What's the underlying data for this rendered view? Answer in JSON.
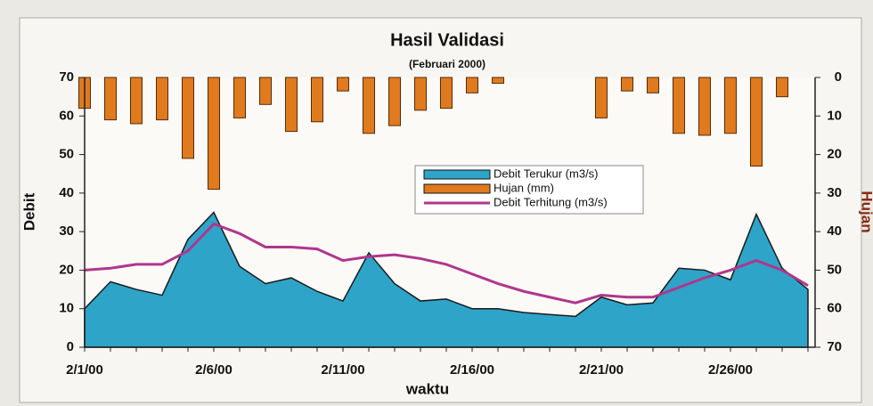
{
  "chart_data": {
    "type": "combo",
    "title": "Hasil Validasi",
    "subtitle": "(Februari 2000)",
    "x_label": "waktu",
    "y_label": "Debit",
    "y2_label": "Hujan",
    "categories": [
      "2/1/00",
      null,
      null,
      null,
      null,
      "2/6/00",
      null,
      null,
      null,
      null,
      "2/11/00",
      null,
      null,
      null,
      null,
      "2/16/00",
      null,
      null,
      null,
      null,
      "2/21/00",
      null,
      null,
      null,
      null,
      "2/26/00",
      null,
      null,
      null
    ],
    "ylim": [
      0,
      70
    ],
    "yticks": [
      0,
      10,
      20,
      30,
      40,
      50,
      60,
      70
    ],
    "y2lim": [
      70,
      0
    ],
    "y2ticks": [
      0,
      10,
      20,
      30,
      40,
      50,
      60,
      70
    ],
    "legend": "center",
    "series": [
      {
        "name": "Debit Terukur (m3/s)",
        "type": "area",
        "color": "#2ea4c8",
        "values": [
          10,
          17,
          15,
          13.5,
          28,
          35,
          21,
          16.5,
          18,
          14.5,
          12,
          24.5,
          16.5,
          12,
          12.5,
          10,
          10,
          9,
          8.5,
          8,
          13,
          11,
          11.5,
          20.5,
          20,
          17.5,
          34.5,
          20.5,
          15
        ]
      },
      {
        "name": "Hujan (mm)",
        "type": "bar",
        "axis": "y2",
        "color": "#e07a1f",
        "values": [
          8,
          11,
          12,
          11,
          21,
          29,
          10.5,
          7,
          14,
          11.5,
          3.5,
          14.5,
          12.5,
          8.5,
          8,
          4,
          1.5,
          0,
          0,
          0,
          10.5,
          3.5,
          4,
          14.5,
          15,
          14.5,
          23,
          5,
          0
        ]
      },
      {
        "name": "Debit Terhitung (m3/s)",
        "type": "line",
        "color": "#b0368c",
        "values": [
          20,
          20.5,
          21.5,
          21.5,
          25,
          32,
          29.5,
          26,
          26,
          25.5,
          22.5,
          23.5,
          24,
          23,
          21.5,
          19,
          16.5,
          14.5,
          13,
          11.5,
          13.5,
          13,
          13,
          15.5,
          18,
          20,
          22.5,
          20,
          16
        ]
      }
    ]
  }
}
